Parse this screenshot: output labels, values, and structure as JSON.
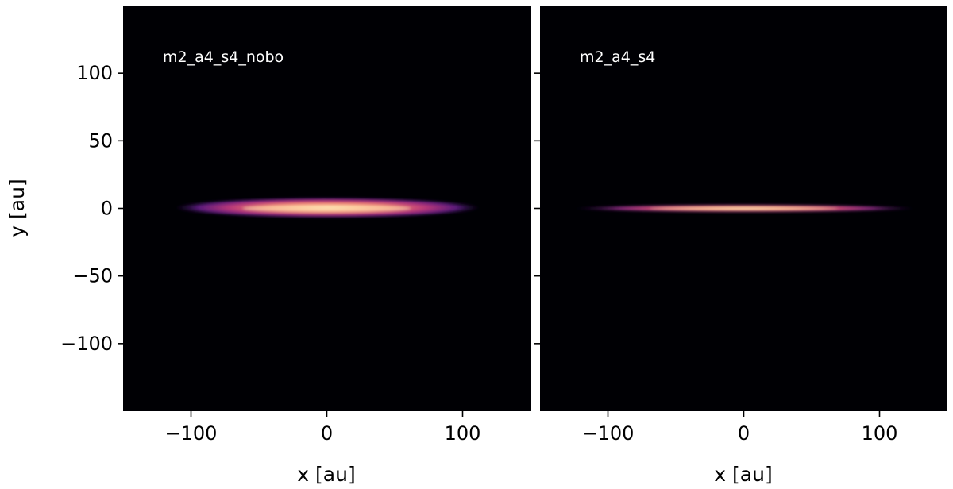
{
  "chart_data": [
    {
      "type": "heatmap",
      "panel_label": "m2_a4_s4_nobo",
      "xlabel": "x [au]",
      "ylabel": "y [au]",
      "xlim": [
        -150,
        150
      ],
      "ylim": [
        -150,
        150
      ],
      "xticks": [
        -100,
        0,
        100
      ],
      "xtick_labels": [
        "−100",
        "0",
        "100"
      ],
      "yticks": [
        100,
        50,
        0,
        -50,
        -100
      ],
      "ytick_labels": [
        "100",
        "50",
        "0",
        "−50",
        "−100"
      ],
      "colormap": "magma",
      "background_color": "#000004",
      "emission_band": {
        "x_range": [
          -112,
          113
        ],
        "y_range": [
          -7,
          8
        ],
        "peak_x": 0,
        "peak_y": 0
      }
    },
    {
      "type": "heatmap",
      "panel_label": "m2_a4_s4",
      "xlabel": "x [au]",
      "xlim": [
        -150,
        150
      ],
      "ylim": [
        -150,
        150
      ],
      "xticks": [
        -100,
        0,
        100
      ],
      "xtick_labels": [
        "−100",
        "0",
        "100"
      ],
      "yticks": [
        100,
        50,
        0,
        -50,
        -100
      ],
      "colormap": "magma",
      "background_color": "#000004",
      "emission_band": {
        "x_range": [
          -125,
          127
        ],
        "y_range": [
          -3,
          3
        ],
        "peak_x": 0,
        "peak_y": 0
      }
    }
  ]
}
